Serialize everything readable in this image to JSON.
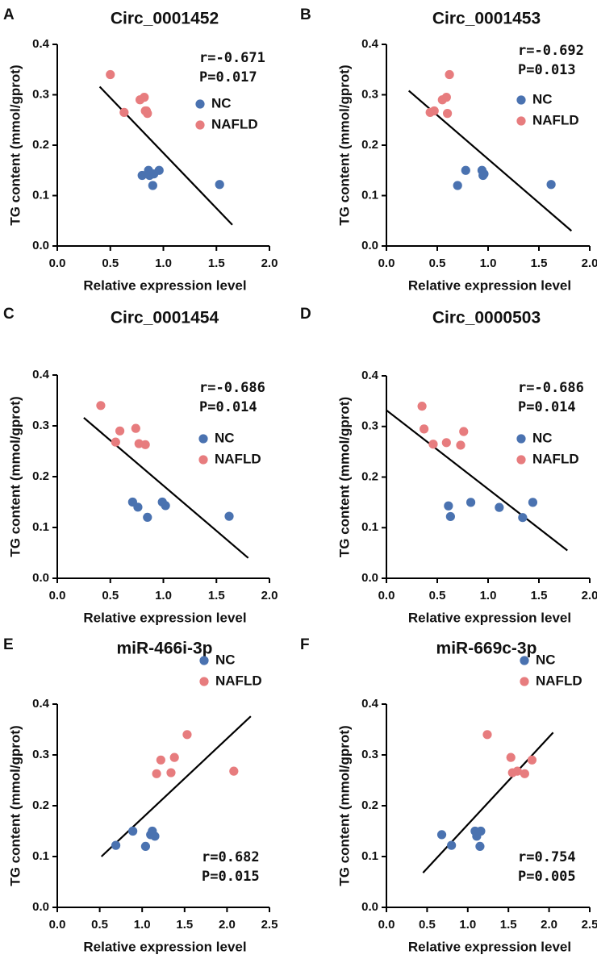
{
  "figure": {
    "x_axis_label": "Relative expression level",
    "y_axis_label": "TG content (mmol/gprot)"
  },
  "colors": {
    "nc": "#4a72b0",
    "nafld": "#e77c7e",
    "line": "#000000"
  },
  "chart_data": [
    {
      "panel": "A",
      "type": "scatter",
      "title": "Circ_0001452",
      "xlabel": "Relative expression level",
      "ylabel": "TG content (mmol/gprot)",
      "xlim": [
        0,
        2.0
      ],
      "xticks": [
        "0.0",
        "0.5",
        "1.0",
        "1.5",
        "2.0"
      ],
      "ylim": [
        0,
        0.4
      ],
      "yticks": [
        "0.0",
        "0.1",
        "0.2",
        "0.3",
        "0.4"
      ],
      "r": "r=-0.671",
      "p": "P=0.017",
      "legend_pos": "middle-right",
      "legend": [
        "NC",
        "NAFLD"
      ],
      "series": [
        {
          "name": "NC",
          "x": [
            0.8,
            0.86,
            0.87,
            0.9,
            0.91,
            0.96,
            1.53
          ],
          "y": [
            0.14,
            0.15,
            0.14,
            0.12,
            0.143,
            0.15,
            0.122
          ]
        },
        {
          "name": "NAFLD",
          "x": [
            0.5,
            0.63,
            0.78,
            0.82,
            0.83,
            0.85,
            0.84
          ],
          "y": [
            0.34,
            0.265,
            0.29,
            0.295,
            0.268,
            0.263,
            0.268
          ]
        }
      ],
      "fit": {
        "x": [
          0.4,
          1.65
        ],
        "y": [
          0.316,
          0.042
        ]
      }
    },
    {
      "panel": "B",
      "type": "scatter",
      "title": "Circ_0001453",
      "xlabel": "Relative expression level",
      "ylabel": "TG content (mmol/gprot)",
      "xlim": [
        0,
        2.0
      ],
      "xticks": [
        "0.0",
        "0.5",
        "1.0",
        "1.5",
        "2.0"
      ],
      "ylim": [
        0,
        0.4
      ],
      "yticks": [
        "0.0",
        "0.1",
        "0.2",
        "0.3",
        "0.4"
      ],
      "r": "r=-0.692",
      "p": "P=0.013",
      "legend_pos": "middle-right",
      "legend": [
        "NC",
        "NAFLD"
      ],
      "series": [
        {
          "name": "NC",
          "x": [
            0.7,
            0.78,
            0.94,
            0.95,
            0.96,
            1.62
          ],
          "y": [
            0.12,
            0.15,
            0.15,
            0.14,
            0.143,
            0.122
          ]
        },
        {
          "name": "NAFLD",
          "x": [
            0.43,
            0.47,
            0.55,
            0.59,
            0.62,
            0.6
          ],
          "y": [
            0.265,
            0.268,
            0.29,
            0.295,
            0.34,
            0.263
          ]
        }
      ],
      "fit": {
        "x": [
          0.22,
          1.82
        ],
        "y": [
          0.308,
          0.03
        ]
      }
    },
    {
      "panel": "C",
      "type": "scatter",
      "title": "Circ_0001454",
      "xlabel": "Relative expression level",
      "ylabel": "TG content (mmol/gprot)",
      "xlim": [
        0,
        2.0
      ],
      "xticks": [
        "0.0",
        "0.5",
        "1.0",
        "1.5",
        "2.0"
      ],
      "ylim": [
        0,
        0.4
      ],
      "yticks": [
        "0.0",
        "0.1",
        "0.2",
        "0.3",
        "0.4"
      ],
      "r": "r=-0.686",
      "p": "P=0.014",
      "legend_pos": "middle-right",
      "legend": [
        "NC",
        "NAFLD"
      ],
      "series": [
        {
          "name": "NC",
          "x": [
            0.71,
            0.76,
            0.85,
            0.99,
            1.02,
            1.62
          ],
          "y": [
            0.15,
            0.14,
            0.12,
            0.15,
            0.143,
            0.122
          ]
        },
        {
          "name": "NAFLD",
          "x": [
            0.41,
            0.55,
            0.59,
            0.74,
            0.77,
            0.83
          ],
          "y": [
            0.34,
            0.268,
            0.29,
            0.295,
            0.265,
            0.263
          ]
        }
      ],
      "fit": {
        "x": [
          0.25,
          1.8
        ],
        "y": [
          0.316,
          0.04
        ]
      }
    },
    {
      "panel": "D",
      "type": "scatter",
      "title": "Circ_0000503",
      "xlabel": "Relative expression level",
      "ylabel": "TG content (mmol/gprot)",
      "xlim": [
        0,
        2.0
      ],
      "xticks": [
        "0.0",
        "0.5",
        "1.0",
        "1.5",
        "2.0"
      ],
      "ylim": [
        0,
        0.4
      ],
      "yticks": [
        "0.0",
        "0.1",
        "0.2",
        "0.3",
        "0.4"
      ],
      "r": "r=-0.686",
      "p": "P=0.014",
      "legend_pos": "middle-right",
      "legend": [
        "NC",
        "NAFLD"
      ],
      "series": [
        {
          "name": "NC",
          "x": [
            0.61,
            0.63,
            0.83,
            1.11,
            1.34,
            1.44
          ],
          "y": [
            0.143,
            0.122,
            0.15,
            0.14,
            0.12,
            0.15
          ]
        },
        {
          "name": "NAFLD",
          "x": [
            0.35,
            0.37,
            0.46,
            0.59,
            0.73,
            0.76
          ],
          "y": [
            0.34,
            0.295,
            0.265,
            0.268,
            0.263,
            0.29
          ]
        }
      ],
      "fit": {
        "x": [
          0.0,
          1.78
        ],
        "y": [
          0.332,
          0.055
        ]
      }
    },
    {
      "panel": "E",
      "type": "scatter",
      "title": "miR-466i-3p",
      "xlabel": "Relative expression level",
      "ylabel": "TG content (mmol/gprot)",
      "xlim": [
        0,
        2.5
      ],
      "xticks": [
        "0.0",
        "0.5",
        "1.0",
        "1.5",
        "2.0",
        "2.5"
      ],
      "ylim": [
        0,
        0.4
      ],
      "yticks": [
        "0.0",
        "0.1",
        "0.2",
        "0.3",
        "0.4"
      ],
      "r": "r=0.682",
      "p": "P=0.015",
      "legend_pos": "bottom-right",
      "legend": [
        "NC",
        "NAFLD"
      ],
      "series": [
        {
          "name": "NC",
          "x": [
            0.69,
            0.89,
            1.04,
            1.1,
            1.12,
            1.15
          ],
          "y": [
            0.122,
            0.15,
            0.12,
            0.143,
            0.15,
            0.14
          ]
        },
        {
          "name": "NAFLD",
          "x": [
            1.17,
            1.22,
            1.34,
            1.38,
            1.53,
            2.08
          ],
          "y": [
            0.263,
            0.29,
            0.265,
            0.295,
            0.34,
            0.268
          ]
        }
      ],
      "fit": {
        "x": [
          0.52,
          2.28
        ],
        "y": [
          0.1,
          0.376
        ]
      }
    },
    {
      "panel": "F",
      "type": "scatter",
      "title": "miR-669c-3p",
      "xlabel": "Relative expression level",
      "ylabel": "TG content (mmol/gprot)",
      "xlim": [
        0,
        2.5
      ],
      "xticks": [
        "0.0",
        "0.5",
        "1.0",
        "1.5",
        "2.0",
        "2.5"
      ],
      "ylim": [
        0,
        0.4
      ],
      "yticks": [
        "0.0",
        "0.1",
        "0.2",
        "0.3",
        "0.4"
      ],
      "r": "r=0.754",
      "p": "P=0.005",
      "legend_pos": "bottom-right",
      "legend": [
        "NC",
        "NAFLD"
      ],
      "series": [
        {
          "name": "NC",
          "x": [
            0.68,
            0.8,
            1.09,
            1.11,
            1.15,
            1.16
          ],
          "y": [
            0.143,
            0.122,
            0.15,
            0.14,
            0.12,
            0.15
          ]
        },
        {
          "name": "NAFLD",
          "x": [
            1.24,
            1.53,
            1.55,
            1.61,
            1.7,
            1.79
          ],
          "y": [
            0.34,
            0.295,
            0.265,
            0.268,
            0.263,
            0.29
          ]
        }
      ],
      "fit": {
        "x": [
          0.45,
          2.05
        ],
        "y": [
          0.068,
          0.344
        ]
      }
    }
  ]
}
